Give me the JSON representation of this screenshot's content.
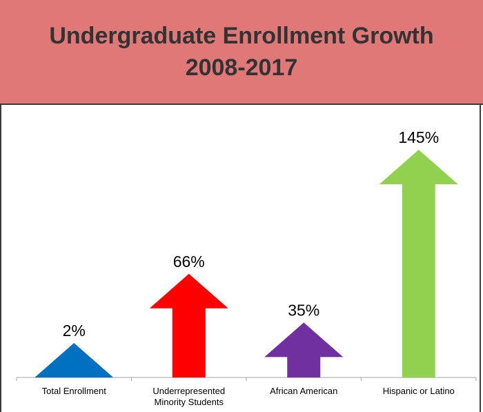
{
  "header": {
    "title_line1": "Undergraduate Enrollment Growth",
    "title_line2": "2008-2017"
  },
  "chart_data": {
    "type": "bar",
    "categories": [
      [
        "Total Enrollment"
      ],
      [
        "Underrepresented",
        "Minority Students"
      ],
      [
        "African American"
      ],
      [
        "Hispanic or Latino"
      ]
    ],
    "values": [
      2,
      66,
      35,
      145
    ],
    "value_labels": [
      "2%",
      "66%",
      "35%",
      "145%"
    ],
    "colors": [
      "#0070c0",
      "#ff0000",
      "#7030a0",
      "#92d050"
    ],
    "ylim": [
      0,
      145
    ],
    "mark_style": "up-arrow",
    "legend": "none",
    "grid": false
  }
}
